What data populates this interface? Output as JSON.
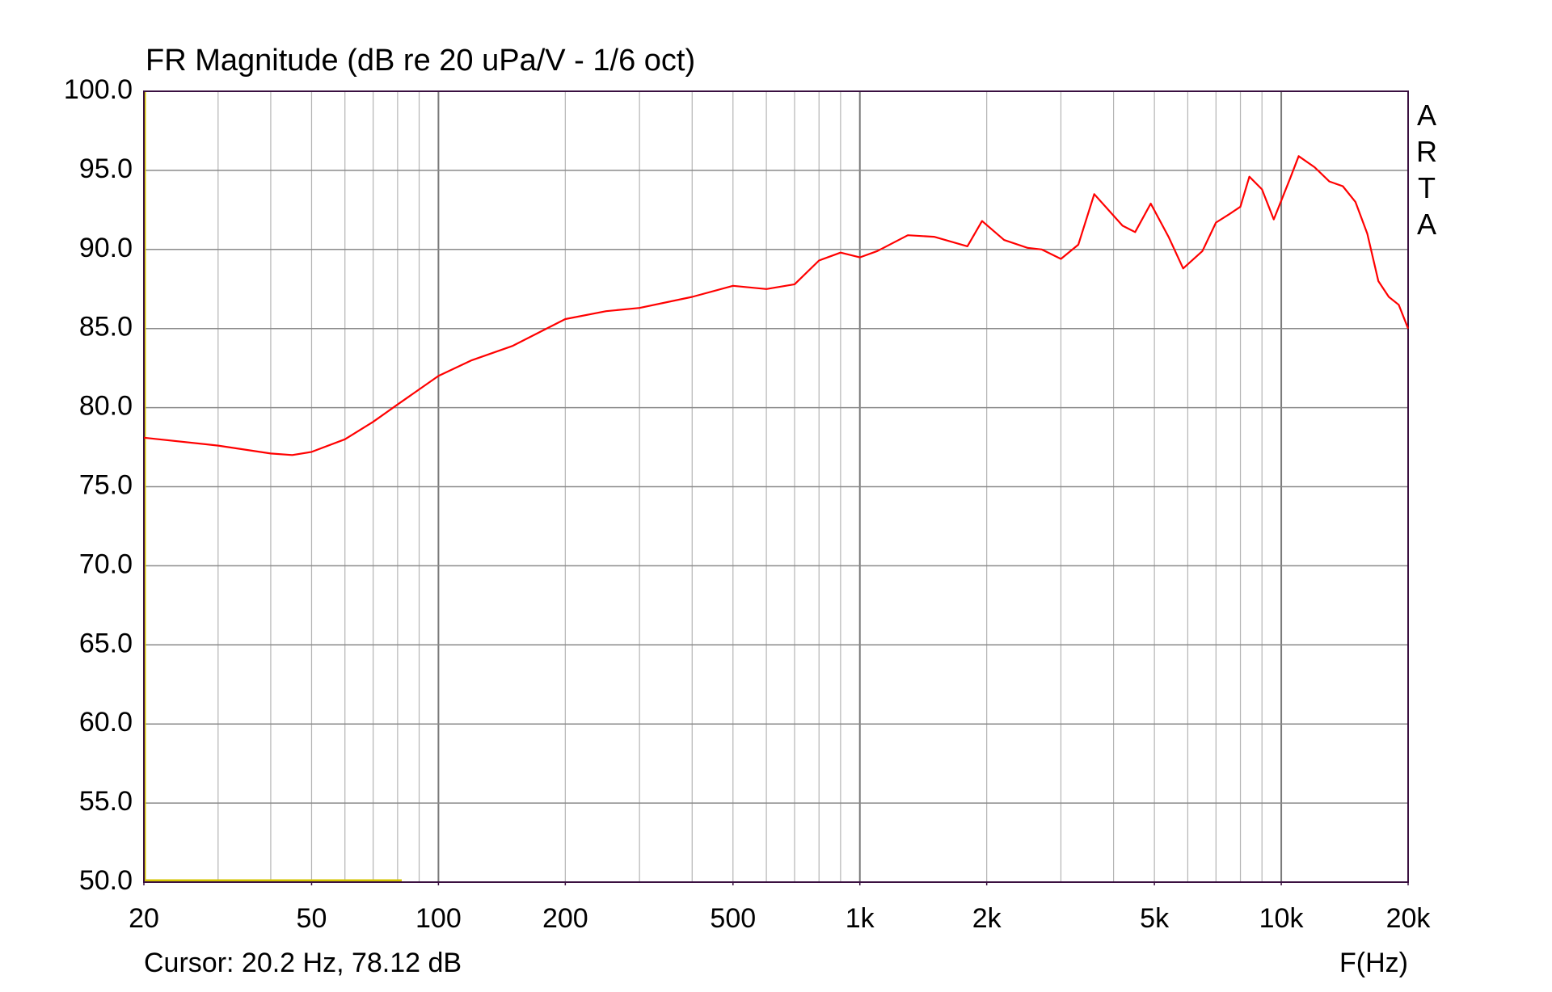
{
  "chart_data": {
    "type": "line",
    "title": "FR Magnitude (dB re 20 uPa/V - 1/6 oct)",
    "watermark": "ARTA",
    "cursor_text": "Cursor: 20.2 Hz, 78.12 dB",
    "x_label": "F(Hz)",
    "log_x": true,
    "grid": true,
    "xlim": [
      20,
      20000
    ],
    "ylim": [
      50,
      100
    ],
    "xticks": [
      20,
      50,
      100,
      200,
      500,
      {
        "value": 1000,
        "label": "1k"
      },
      {
        "value": 2000,
        "label": "2k"
      },
      {
        "value": 5000,
        "label": "5k"
      },
      {
        "value": 10000,
        "label": "10k"
      },
      {
        "value": 20000,
        "label": "20k"
      }
    ],
    "yticks": [
      {
        "value": 100,
        "label": "100.0"
      },
      {
        "value": 95,
        "label": "95.0"
      },
      {
        "value": 90,
        "label": "90.0"
      },
      {
        "value": 85,
        "label": "85.0"
      },
      {
        "value": 80,
        "label": "80.0"
      },
      {
        "value": 75,
        "label": "75.0"
      },
      {
        "value": 70,
        "label": "70.0"
      },
      {
        "value": 65,
        "label": "65.0"
      },
      {
        "value": 60,
        "label": "60.0"
      },
      {
        "value": 55,
        "label": "55.0"
      },
      {
        "value": 50,
        "label": "50.0"
      }
    ],
    "x": [
      20,
      30,
      40,
      45,
      50,
      60,
      70,
      80,
      100,
      120,
      150,
      200,
      250,
      300,
      400,
      500,
      600,
      700,
      800,
      900,
      1000,
      1100,
      1300,
      1500,
      1800,
      1950,
      2200,
      2500,
      2700,
      3000,
      3300,
      3600,
      4200,
      4500,
      4900,
      5400,
      5850,
      6500,
      7000,
      7500,
      8000,
      8400,
      9000,
      9600,
      10500,
      11000,
      12000,
      13000,
      14000,
      15000,
      16000,
      17000,
      18000,
      19000,
      20000
    ],
    "series": [
      {
        "name": "FR Magnitude",
        "color": "#ff0000",
        "values": [
          78.1,
          77.6,
          77.1,
          77.0,
          77.2,
          78.0,
          79.1,
          80.2,
          82.0,
          83.0,
          83.9,
          85.6,
          86.1,
          86.3,
          87.0,
          87.7,
          87.5,
          87.8,
          89.3,
          89.8,
          89.5,
          89.9,
          90.9,
          90.8,
          90.2,
          91.8,
          90.6,
          90.1,
          90.0,
          89.4,
          90.3,
          93.5,
          91.5,
          91.1,
          92.9,
          90.8,
          88.8,
          89.9,
          91.7,
          92.2,
          92.7,
          94.6,
          93.8,
          91.9,
          94.5,
          95.9,
          95.2,
          94.3,
          94.0,
          93.0,
          91.0,
          88.0,
          87.0,
          86.5,
          85.0
        ]
      }
    ]
  }
}
